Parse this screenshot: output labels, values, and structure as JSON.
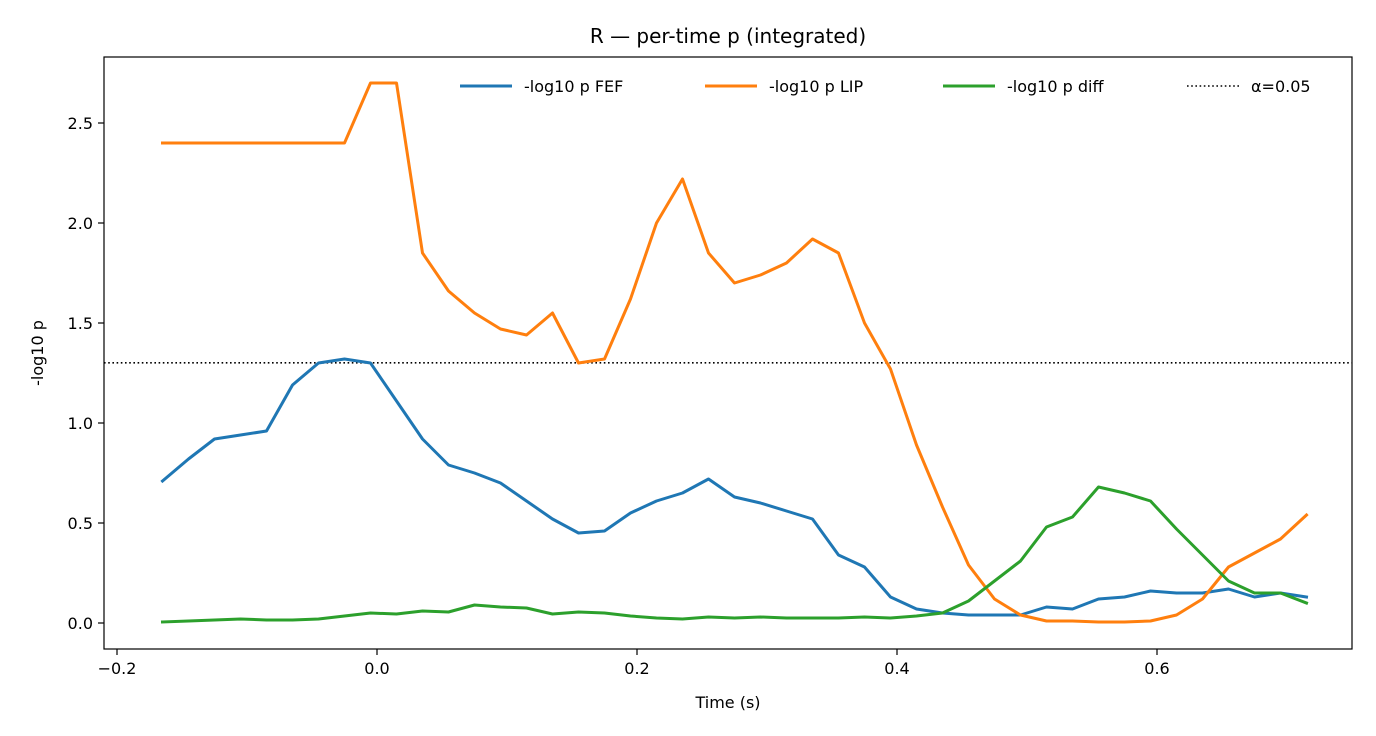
{
  "chart_data": {
    "type": "line",
    "title": "R — per-time p (integrated)",
    "xlabel": "Time (s)",
    "ylabel": "-log10 p",
    "xlim": [
      -0.21,
      0.75
    ],
    "ylim": [
      -0.13,
      2.83
    ],
    "xticks": [
      -0.2,
      0.0,
      0.2,
      0.4,
      0.6
    ],
    "xtick_labels": [
      "−0.2",
      "0.0",
      "0.2",
      "0.4",
      "0.6"
    ],
    "yticks": [
      0.0,
      0.5,
      1.0,
      1.5,
      2.0,
      2.5
    ],
    "ytick_labels": [
      "0.0",
      "0.5",
      "1.0",
      "1.5",
      "2.0",
      "2.5"
    ],
    "legend_position": "top-right",
    "grid": false,
    "x": [
      -0.165,
      -0.145,
      -0.125,
      -0.105,
      -0.085,
      -0.065,
      -0.045,
      -0.025,
      -0.005,
      0.015,
      0.035,
      0.055,
      0.075,
      0.095,
      0.115,
      0.135,
      0.155,
      0.175,
      0.195,
      0.215,
      0.235,
      0.255,
      0.275,
      0.295,
      0.315,
      0.335,
      0.355,
      0.375,
      0.395,
      0.415,
      0.435,
      0.455,
      0.475,
      0.495,
      0.515,
      0.535,
      0.555,
      0.575,
      0.595,
      0.615,
      0.635,
      0.655,
      0.675,
      0.695,
      0.715
    ],
    "series": [
      {
        "name": "-log10 p FEF",
        "color": "#1f77b4",
        "values": [
          0.71,
          0.82,
          0.92,
          0.94,
          0.96,
          1.19,
          1.3,
          1.32,
          1.3,
          1.11,
          0.92,
          0.79,
          0.75,
          0.7,
          0.61,
          0.52,
          0.45,
          0.46,
          0.55,
          0.61,
          0.65,
          0.72,
          0.63,
          0.6,
          0.56,
          0.52,
          0.34,
          0.28,
          0.13,
          0.07,
          0.05,
          0.04,
          0.04,
          0.04,
          0.08,
          0.07,
          0.12,
          0.13,
          0.16,
          0.15,
          0.15,
          0.17,
          0.13,
          0.15,
          0.13
        ]
      },
      {
        "name": "-log10 p LIP",
        "color": "#ff7f0e",
        "values": [
          2.4,
          2.4,
          2.4,
          2.4,
          2.4,
          2.4,
          2.4,
          2.4,
          2.7,
          2.7,
          1.85,
          1.66,
          1.55,
          1.47,
          1.44,
          1.55,
          1.3,
          1.32,
          1.62,
          2.0,
          2.22,
          1.85,
          1.7,
          1.74,
          1.8,
          1.92,
          1.85,
          1.5,
          1.27,
          0.89,
          0.58,
          0.29,
          0.12,
          0.04,
          0.01,
          0.01,
          0.005,
          0.005,
          0.01,
          0.04,
          0.12,
          0.28,
          0.35,
          0.42,
          0.54
        ]
      },
      {
        "name": "-log10 p diff",
        "color": "#2ca02c",
        "values": [
          0.005,
          0.01,
          0.015,
          0.02,
          0.015,
          0.015,
          0.02,
          0.035,
          0.05,
          0.045,
          0.06,
          0.055,
          0.09,
          0.08,
          0.075,
          0.045,
          0.055,
          0.05,
          0.035,
          0.025,
          0.02,
          0.03,
          0.025,
          0.03,
          0.025,
          0.025,
          0.025,
          0.03,
          0.025,
          0.035,
          0.05,
          0.11,
          0.21,
          0.31,
          0.48,
          0.53,
          0.68,
          0.65,
          0.61,
          0.47,
          0.34,
          0.21,
          0.15,
          0.15,
          0.1
        ]
      }
    ],
    "reference_line": {
      "name": "α=0.05",
      "y": 1.30103,
      "color": "#000000",
      "style": "dotted"
    }
  }
}
